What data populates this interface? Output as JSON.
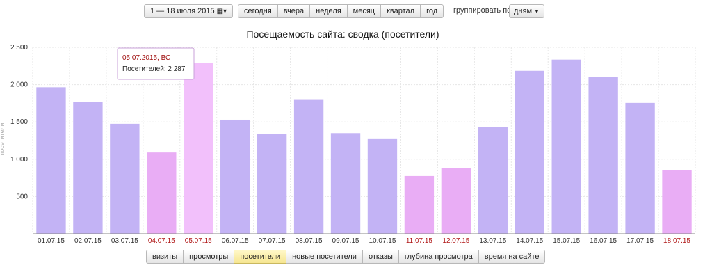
{
  "toolbar": {
    "date_range": "1 — 18 июля 2015",
    "calendar_icon": "calendar-icon",
    "periods": [
      "сегодня",
      "вчера",
      "неделя",
      "месяц",
      "квартал",
      "год"
    ],
    "group_label": "группировать по",
    "group_value": "дням",
    "dropdown_icon": "chevron-down-icon"
  },
  "metrics": {
    "tabs": [
      "визиты",
      "просмотры",
      "посетители",
      "новые посетители",
      "отказы",
      "глубина просмотра",
      "время на сайте"
    ],
    "active": "посетители"
  },
  "colors": {
    "weekday_bar": "#c3b3f5",
    "weekend_bar": "#e9adf5",
    "hover_bar": "#f2c0fb",
    "weekend_label": "#b01818",
    "grid": "#e6e6e6"
  },
  "tooltip": {
    "date": "05.07.2015, ВС",
    "value_text": "Посетителей: 2 287"
  },
  "chart_data": {
    "type": "bar",
    "title": "Посещаемость сайта: сводка (посетители)",
    "ylabel": "посетители",
    "xlabel": "",
    "ylim": [
      0,
      2500
    ],
    "yticks": [
      500,
      1000,
      1500,
      2000,
      2500
    ],
    "ytick_labels": [
      "500",
      "1 000",
      "1 500",
      "2 000",
      "2 500"
    ],
    "grid": true,
    "categories": [
      "01.07.15",
      "02.07.15",
      "03.07.15",
      "04.07.15",
      "05.07.15",
      "06.07.15",
      "07.07.15",
      "08.07.15",
      "09.07.15",
      "10.07.15",
      "11.07.15",
      "12.07.15",
      "13.07.15",
      "14.07.15",
      "15.07.15",
      "16.07.15",
      "17.07.15",
      "18.07.15"
    ],
    "values": [
      1965,
      1770,
      1475,
      1090,
      2287,
      1530,
      1340,
      1795,
      1350,
      1270,
      775,
      880,
      1430,
      2185,
      2335,
      2100,
      1755,
      850
    ],
    "weekend": [
      false,
      false,
      false,
      true,
      true,
      false,
      false,
      false,
      false,
      false,
      true,
      true,
      false,
      false,
      false,
      false,
      false,
      true
    ],
    "highlighted_index": 4
  }
}
